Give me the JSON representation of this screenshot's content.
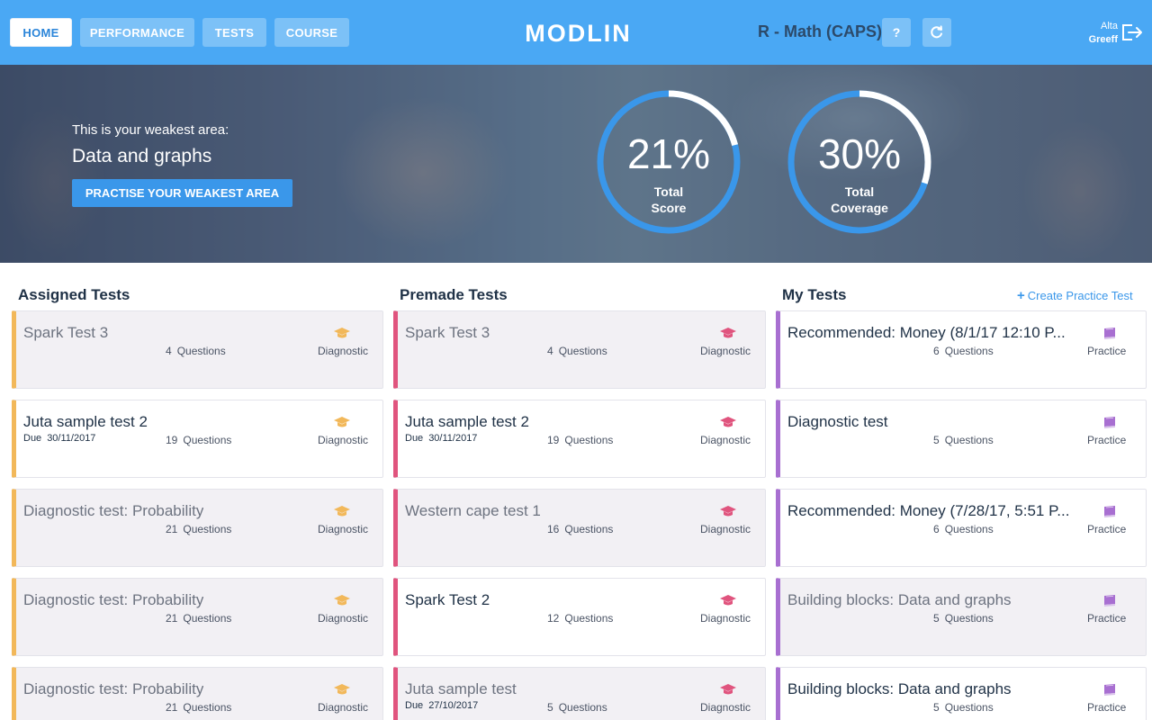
{
  "nav": {
    "tabs": [
      "HOME",
      "PERFORMANCE",
      "TESTS",
      "COURSE"
    ],
    "logo": "MODLIN",
    "course": "R - Math (CAPS)",
    "help_label": "?",
    "user_first": "Alta",
    "user_last": "Greeff"
  },
  "hero": {
    "weak_label": "This is your weakest area:",
    "weak_area": "Data and graphs",
    "practise_button": "PRACTISE YOUR WEAKEST AREA",
    "score": {
      "percent": 21,
      "value": "21%",
      "label_line1": "Total",
      "label_line2": "Score"
    },
    "coverage": {
      "percent": 30,
      "value": "30%",
      "label_line1": "Total",
      "label_line2": "Coverage"
    }
  },
  "colors": {
    "accent": "#4aa8f4",
    "assigned": "#f2b85a",
    "premade": "#e0547e",
    "my": "#a86fd1"
  },
  "assigned": {
    "title": "Assigned Tests",
    "icon": "graduation-cap-icon",
    "cards": [
      {
        "name": "Spark Test 3",
        "due_label": "",
        "due": "",
        "questions": "4",
        "q_label": "Questions",
        "type": "Diagnostic"
      },
      {
        "name": "Juta sample test 2",
        "due_label": "Due",
        "due": "30/11/2017",
        "questions": "19",
        "q_label": "Questions",
        "type": "Diagnostic"
      },
      {
        "name": "Diagnostic test: Probability",
        "due_label": "",
        "due": "",
        "questions": "21",
        "q_label": "Questions",
        "type": "Diagnostic"
      },
      {
        "name": "Diagnostic test: Probability",
        "due_label": "",
        "due": "",
        "questions": "21",
        "q_label": "Questions",
        "type": "Diagnostic"
      },
      {
        "name": "Diagnostic test: Probability",
        "due_label": "",
        "due": "",
        "questions": "21",
        "q_label": "Questions",
        "type": "Diagnostic"
      }
    ]
  },
  "premade": {
    "title": "Premade Tests",
    "icon": "graduation-cap-icon",
    "cards": [
      {
        "name": "Spark Test 3",
        "due_label": "",
        "due": "",
        "questions": "4",
        "q_label": "Questions",
        "type": "Diagnostic"
      },
      {
        "name": "Juta sample test 2",
        "due_label": "Due",
        "due": "30/11/2017",
        "questions": "19",
        "q_label": "Questions",
        "type": "Diagnostic"
      },
      {
        "name": "Western cape test 1",
        "due_label": "",
        "due": "",
        "questions": "16",
        "q_label": "Questions",
        "type": "Diagnostic"
      },
      {
        "name": "Spark Test 2",
        "due_label": "",
        "due": "",
        "questions": "12",
        "q_label": "Questions",
        "type": "Diagnostic"
      },
      {
        "name": "Juta sample test",
        "due_label": "Due",
        "due": "27/10/2017",
        "questions": "5",
        "q_label": "Questions",
        "type": "Diagnostic"
      }
    ]
  },
  "my": {
    "title": "My Tests",
    "create_link": "Create Practice Test",
    "icon": "book-icon",
    "cards": [
      {
        "name": "Recommended: Money (8/1/17 12:10 P...",
        "due_label": "",
        "due": "",
        "questions": "6",
        "q_label": "Questions",
        "type": "Practice"
      },
      {
        "name": "Diagnostic test",
        "due_label": "",
        "due": "",
        "questions": "5",
        "q_label": "Questions",
        "type": "Practice"
      },
      {
        "name": "Recommended: Money (7/28/17, 5:51 P...",
        "due_label": "",
        "due": "",
        "questions": "6",
        "q_label": "Questions",
        "type": "Practice"
      },
      {
        "name": "Building blocks: Data and graphs",
        "due_label": "",
        "due": "",
        "questions": "5",
        "q_label": "Questions",
        "type": "Practice"
      },
      {
        "name": "Building blocks: Data and graphs",
        "due_label": "",
        "due": "",
        "questions": "5",
        "q_label": "Questions",
        "type": "Practice"
      }
    ]
  }
}
